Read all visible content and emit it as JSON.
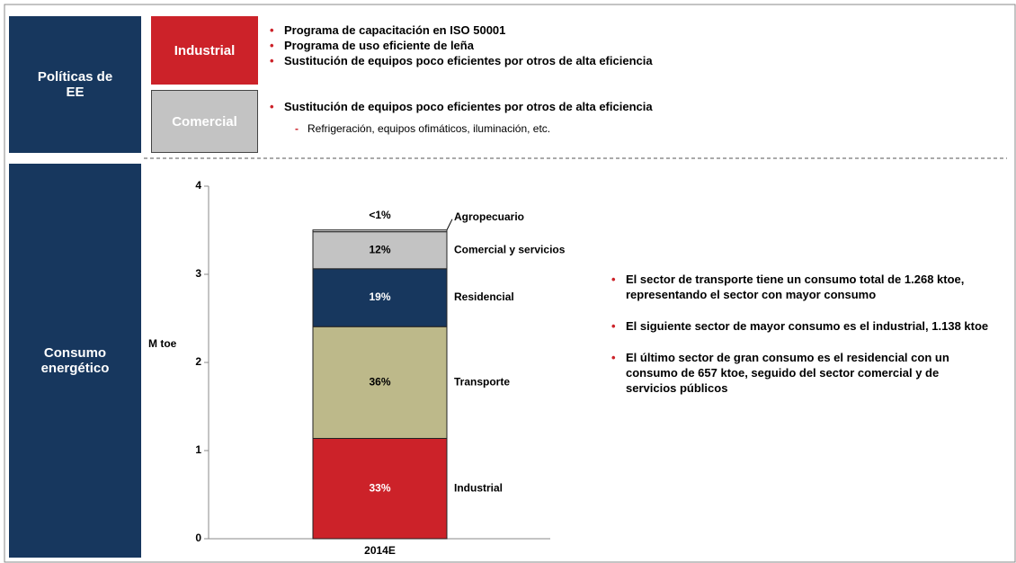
{
  "sections": [
    "Políticas de EE",
    "Consumo energético"
  ],
  "policies": [
    {
      "sector": "Industrial",
      "items": [
        "Programa de capacitación en ISO 50001",
        "Programa de uso eficiente de leña",
        "Sustitución de equipos poco eficientes por otros de alta eficiencia"
      ]
    },
    {
      "sector": "Comercial",
      "items": [
        "Sustitución de equipos poco eficientes por otros de alta eficiencia"
      ],
      "subitems": [
        "Refrigeración, equipos ofimáticos, iluminación, etc."
      ]
    }
  ],
  "notes": [
    "El sector de transporte tiene un consumo total de 1.268 ktoe, representando el sector con mayor consumo",
    "El siguiente sector de mayor consumo es el industrial, 1.138 ktoe",
    "El último sector de gran consumo es el residencial con un consumo de 657 ktoe, seguido del sector comercial y de servicios públicos"
  ],
  "chart_data": {
    "type": "stacked_bar",
    "y_label": "M toe",
    "categories": [
      "2014E"
    ],
    "ylim": [
      0,
      4
    ],
    "yticks": [
      0,
      1,
      2,
      3,
      4
    ],
    "series": [
      {
        "name": "Industrial",
        "color": "#cc2229",
        "values": [
          1.138
        ],
        "share_labels": [
          "33%"
        ]
      },
      {
        "name": "Transporte",
        "color": "#bdb98a",
        "values": [
          1.268
        ],
        "share_labels": [
          "36%"
        ]
      },
      {
        "name": "Residencial",
        "color": "#17375e",
        "values": [
          0.657
        ],
        "share_labels": [
          "19%"
        ]
      },
      {
        "name": "Comercial y servicios",
        "color": "#c3c3c3",
        "values": [
          0.42
        ],
        "share_labels": [
          "12%"
        ]
      },
      {
        "name": "Agropecuario",
        "color": "#d9d9d9",
        "values": [
          0.02
        ],
        "share_labels": [
          "<1%"
        ]
      }
    ]
  }
}
